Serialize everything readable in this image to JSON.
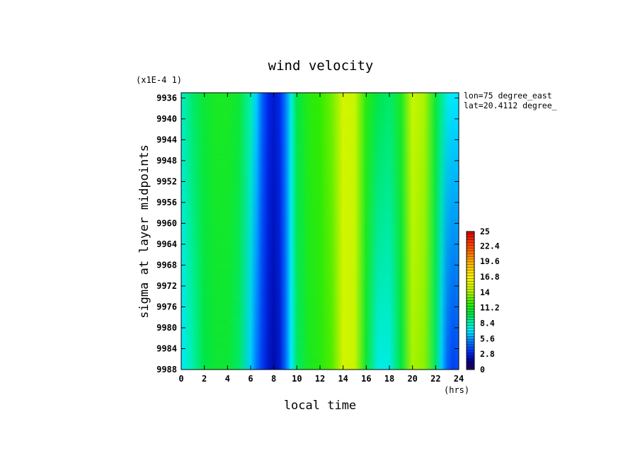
{
  "chart_data": {
    "type": "heatmap",
    "title": "wind velocity",
    "xlabel": "local time",
    "xunit": "(hrs)",
    "ylabel": "sigma at layer midpoints",
    "yscale_note": "(x1E-4 1)",
    "annotations": [
      "lon=75 degree_east",
      "lat=20.4112 degree_"
    ],
    "x_ticks": [
      "0",
      "2",
      "4",
      "6",
      "8",
      "10",
      "12",
      "14",
      "16",
      "18",
      "20",
      "22",
      "24"
    ],
    "y_ticks": [
      "9936",
      "9940",
      "9944",
      "9948",
      "9952",
      "9956",
      "9960",
      "9964",
      "9968",
      "9972",
      "9976",
      "9980",
      "9984",
      "9988"
    ],
    "xlim": [
      0,
      24
    ],
    "ylim": [
      9988,
      9935
    ],
    "y_reversed": true,
    "colorbar": {
      "labels": [
        "25",
        "22.4",
        "19.6",
        "16.8",
        "14",
        "11.2",
        "8.4",
        "5.6",
        "2.8",
        "0"
      ],
      "range": [
        0,
        25
      ],
      "levels": 50
    },
    "x": [
      0,
      1,
      2,
      3,
      4,
      5,
      6,
      6.5,
      7,
      7.5,
      8,
      8.5,
      9,
      9.5,
      10,
      11,
      12,
      13,
      14,
      15,
      16,
      17,
      18,
      19,
      20,
      21,
      22,
      22.5,
      23,
      23.5,
      24
    ],
    "y": [
      9935,
      9988
    ],
    "values": [
      [
        8.0,
        9.5,
        10.5,
        11.0,
        11.0,
        10.5,
        8.5,
        6.5,
        4.5,
        3.0,
        2.5,
        3.0,
        5.0,
        7.5,
        10.0,
        11.5,
        12.0,
        13.0,
        15.0,
        14.5,
        11.5,
        10.0,
        9.5,
        11.0,
        14.5,
        14.0,
        10.5,
        9.0,
        7.5,
        7.0,
        7.0
      ],
      [
        7.0,
        8.5,
        10.0,
        10.5,
        10.5,
        9.5,
        6.5,
        5.0,
        3.5,
        2.5,
        2.0,
        2.5,
        4.5,
        7.0,
        9.5,
        11.0,
        11.5,
        12.5,
        15.0,
        14.5,
        10.5,
        7.5,
        7.5,
        10.0,
        14.0,
        13.5,
        9.5,
        6.5,
        4.5,
        3.5,
        4.0
      ]
    ]
  }
}
